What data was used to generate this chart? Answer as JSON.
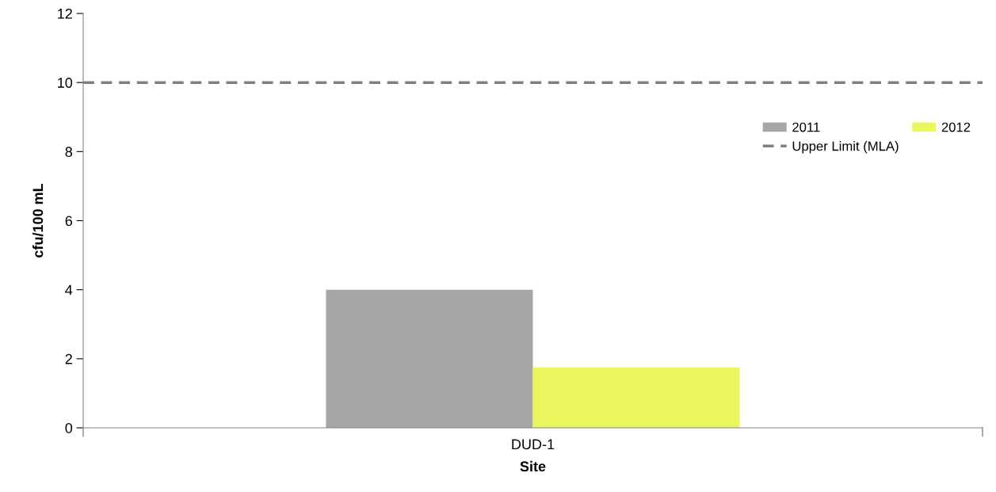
{
  "chart_data": {
    "type": "bar",
    "xlabel": "Site",
    "ylabel": "cfu/100 mL",
    "categories": [
      "DUD-1"
    ],
    "series": [
      {
        "name": "2011",
        "color": "#a6a6a6",
        "values": [
          4
        ]
      },
      {
        "name": "2012",
        "color": "#ebf55e",
        "values": [
          1.75
        ]
      }
    ],
    "ylim": [
      0,
      12
    ],
    "yticks": [
      0,
      2,
      4,
      6,
      8,
      10,
      12
    ],
    "ref_lines": [
      {
        "axis": "y",
        "value": 10,
        "label": "Upper Limit (MLA)",
        "color": "#808080",
        "line_style": "dashed"
      }
    ],
    "grid": false,
    "legend": "right"
  }
}
